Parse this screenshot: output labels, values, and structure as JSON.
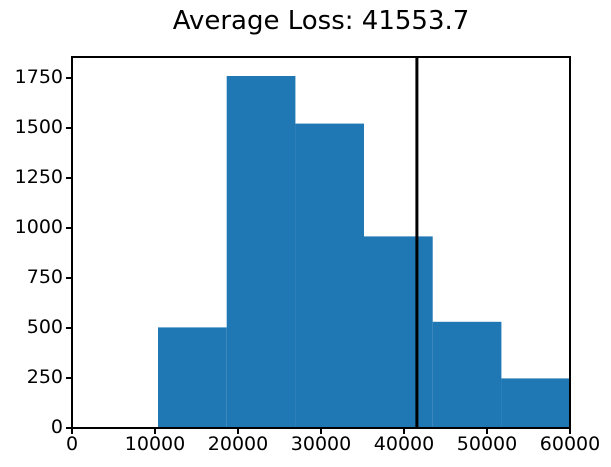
{
  "title": "Average Loss: 41553.7",
  "average_loss": 41553.7,
  "colors": {
    "bar": "#1f77b4",
    "average_line": "#000000",
    "axis": "#000000",
    "text": "#000000",
    "background": "#ffffff"
  },
  "chart_data": {
    "type": "bar",
    "subtype": "histogram",
    "title": "Average Loss: 41553.7",
    "xlabel": "",
    "ylabel": "",
    "bin_edges": [
      10361,
      18634,
      26907,
      35180,
      43454,
      51727,
      60000
    ],
    "counts": [
      503,
      1760,
      1522,
      958,
      531,
      248
    ],
    "average_line_x": 41553.7,
    "xlim": [
      0,
      60000
    ],
    "ylim": [
      0,
      1855
    ],
    "x_ticks": [
      0,
      10000,
      20000,
      30000,
      40000,
      50000,
      60000
    ],
    "x_tick_labels": [
      "0",
      "10000",
      "20000",
      "30000",
      "40000",
      "50000",
      "60000"
    ],
    "y_ticks": [
      0,
      250,
      500,
      750,
      1000,
      1250,
      1500,
      1750
    ],
    "y_tick_labels": [
      "0",
      "250",
      "500",
      "750",
      "1000",
      "1250",
      "1500",
      "1750"
    ],
    "grid": false,
    "legend": null
  }
}
